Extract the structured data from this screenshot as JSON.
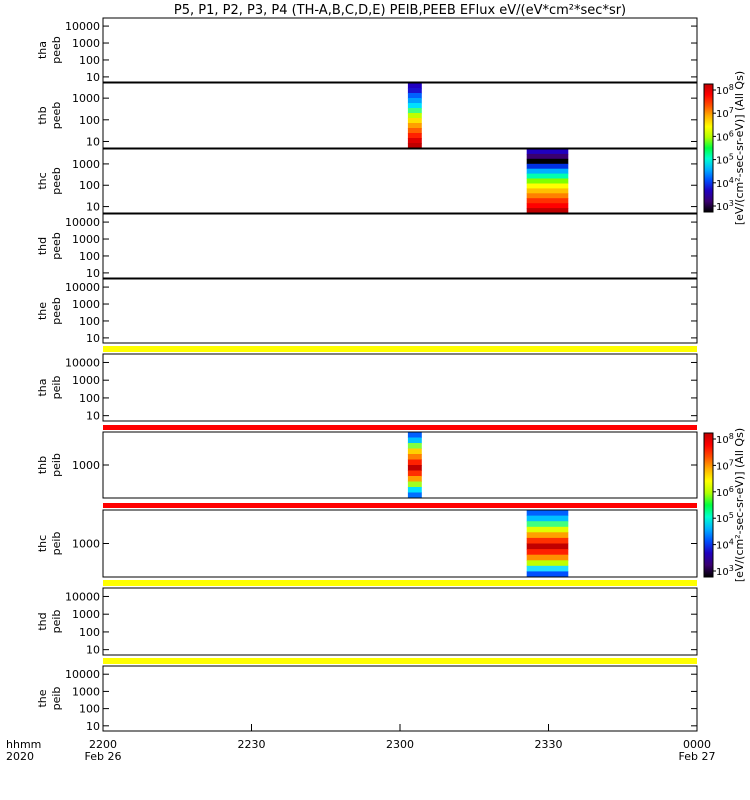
{
  "chart_data": {
    "type": "heatmap",
    "title": "P5, P1, P2, P3, P4 (TH-A,B,C,D,E) PEIB,PEEB EFlux eV/(eV*cm²*sec*sr)",
    "x_axis": {
      "range": [
        "2200",
        "0000"
      ],
      "range_minutes": [
        0,
        60
      ],
      "tick_labels": [
        "2200",
        "2230",
        "2300",
        "2330",
        "0000"
      ],
      "tick_minutes": [
        0,
        15,
        30,
        45,
        60
      ],
      "row_label_1": "hhmm",
      "row_label_2": "2020",
      "start_date": "Feb 26",
      "end_date": "Feb 27"
    },
    "y_scale": "log",
    "panels": [
      {
        "label1": "tha",
        "label2": "peeb",
        "yticks": [
          "10",
          "100",
          "1000",
          "10000"
        ],
        "ytick_values": [
          10,
          100,
          1000,
          10000
        ],
        "yrange": [
          5,
          30000
        ],
        "data_blocks": []
      },
      {
        "label1": "thb",
        "label2": "peeb",
        "yticks": [
          "10",
          "100",
          "1000"
        ],
        "ytick_values": [
          10,
          100,
          1000
        ],
        "yrange": [
          5,
          5000
        ],
        "data_blocks": [
          {
            "t_start": 30.8,
            "t_end": 32.2,
            "profile": "peeb_b"
          }
        ]
      },
      {
        "label1": "thc",
        "label2": "peeb",
        "yticks": [
          "10",
          "100",
          "1000"
        ],
        "ytick_values": [
          10,
          100,
          1000
        ],
        "yrange": [
          5,
          5000
        ],
        "data_blocks": [
          {
            "t_start": 42.8,
            "t_end": 47.0,
            "profile": "peeb_c"
          }
        ]
      },
      {
        "label1": "thd",
        "label2": "peeb",
        "yticks": [
          "10",
          "100",
          "1000",
          "10000"
        ],
        "ytick_values": [
          10,
          100,
          1000,
          10000
        ],
        "yrange": [
          5,
          30000
        ],
        "data_blocks": []
      },
      {
        "label1": "the",
        "label2": "peeb",
        "yticks": [
          "10",
          "100",
          "1000",
          "10000"
        ],
        "ytick_values": [
          10,
          100,
          1000,
          10000
        ],
        "yrange": [
          5,
          30000
        ],
        "data_blocks": []
      },
      {
        "label1": "tha",
        "label2": "peib",
        "yticks": [
          "10",
          "100",
          "1000",
          "10000"
        ],
        "ytick_values": [
          10,
          100,
          1000,
          10000
        ],
        "yrange": [
          5,
          30000
        ],
        "data_blocks": []
      },
      {
        "label1": "thb",
        "label2": "peib",
        "yticks": [
          "1000"
        ],
        "ytick_values": [
          1000
        ],
        "yrange": [
          100,
          10000
        ],
        "data_blocks": [
          {
            "t_start": 30.8,
            "t_end": 32.2,
            "profile": "peib_b"
          }
        ]
      },
      {
        "label1": "thc",
        "label2": "peib",
        "yticks": [
          "1000"
        ],
        "ytick_values": [
          1000
        ],
        "yrange": [
          100,
          10000
        ],
        "data_blocks": [
          {
            "t_start": 42.8,
            "t_end": 47.0,
            "profile": "peib_c"
          }
        ]
      },
      {
        "label1": "thd",
        "label2": "peib",
        "yticks": [
          "10",
          "100",
          "1000",
          "10000"
        ],
        "ytick_values": [
          10,
          100,
          1000,
          10000
        ],
        "yrange": [
          5,
          30000
        ],
        "data_blocks": []
      },
      {
        "label1": "the",
        "label2": "peib",
        "yticks": [
          "10",
          "100",
          "1000",
          "10000"
        ],
        "ytick_values": [
          10,
          100,
          1000,
          10000
        ],
        "yrange": [
          5,
          30000
        ],
        "data_blocks": []
      }
    ],
    "separator_bands": [
      {
        "between": [
          "the peeb",
          "tha peib"
        ],
        "color": "#ffff00"
      },
      {
        "between": [
          "tha peib",
          "thb peib"
        ],
        "color": "#ff0000"
      },
      {
        "between": [
          "thb peib",
          "thc peib"
        ],
        "color": "#ff0000"
      },
      {
        "between": [
          "thc peib",
          "thd peib"
        ],
        "color": "#ffff00"
      },
      {
        "between": [
          "thd peib",
          "the peib"
        ],
        "color": "#ffff00"
      }
    ],
    "colorbars": [
      {
        "label": "[eV/(cm²-sec-sr-eV)] (All Qs)",
        "tick_exponents": [
          "3",
          "4",
          "5",
          "6",
          "7",
          "8"
        ]
      },
      {
        "label": "[eV/(cm²-sec-sr-eV)] (All Qs)",
        "tick_exponents": [
          "3",
          "4",
          "5",
          "6",
          "7",
          "8"
        ]
      }
    ],
    "colors": {
      "colormap": [
        "#000000",
        "#3a0070",
        "#2000c0",
        "#0050ff",
        "#00b0ff",
        "#00ffd0",
        "#00ff40",
        "#b0ff00",
        "#ffff00",
        "#ffb000",
        "#ff5000",
        "#ff0000",
        "#c00000"
      ],
      "axis": "#000000",
      "background": "#ffffff"
    }
  }
}
